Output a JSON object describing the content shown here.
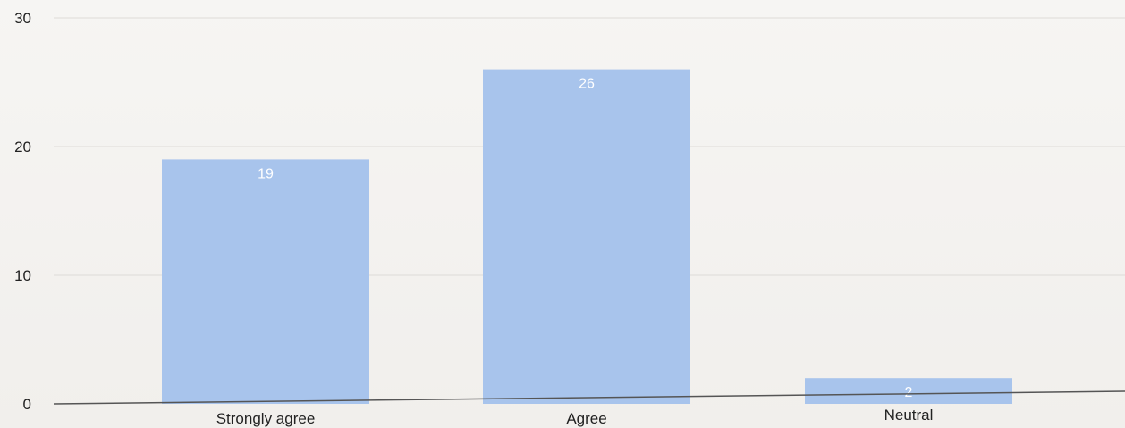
{
  "chart_data": {
    "type": "bar",
    "title": "",
    "xlabel": "",
    "ylabel": "",
    "categories": [
      "Strongly agree",
      "Agree",
      "Neutral"
    ],
    "values": [
      19,
      26,
      2
    ],
    "data_labels": [
      "19",
      "26",
      "2"
    ],
    "ylim": [
      0,
      30
    ],
    "yticks": [
      0,
      10,
      20,
      30
    ],
    "ytick_labels": [
      "0",
      "10",
      "20",
      "30"
    ],
    "grid": true,
    "legend": "none",
    "colors": {
      "bar": "#a8c4ec",
      "bar_label": "#ffffff",
      "axis": "#555555",
      "grid": "#dedbd7",
      "tick_text": "#222222"
    }
  }
}
